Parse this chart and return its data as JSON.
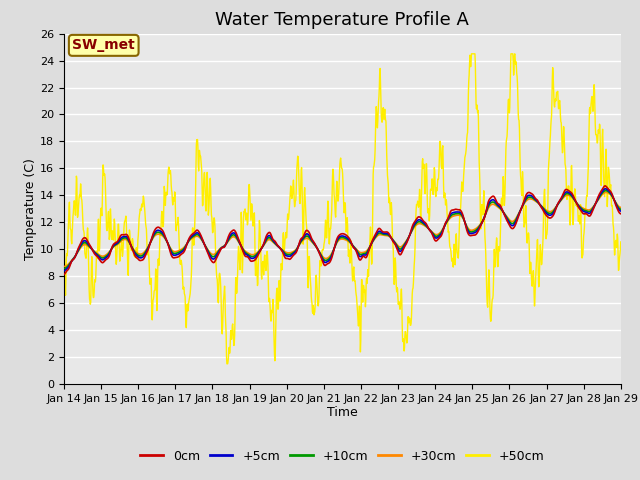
{
  "title": "Water Temperature Profile A",
  "xlabel": "Time",
  "ylabel": "Temperature (C)",
  "ylim": [
    0,
    26
  ],
  "yticks": [
    0,
    2,
    4,
    6,
    8,
    10,
    12,
    14,
    16,
    18,
    20,
    22,
    24,
    26
  ],
  "xtick_labels": [
    "Jan 14",
    "Jan 15",
    "Jan 16",
    "Jan 17",
    "Jan 18",
    "Jan 19",
    "Jan 20",
    "Jan 21",
    "Jan 22",
    "Jan 23",
    "Jan 24",
    "Jan 25",
    "Jan 26",
    "Jan 27",
    "Jan 28",
    "Jan 29"
  ],
  "series_colors": [
    "#cc0000",
    "#0000cc",
    "#009900",
    "#ff8800",
    "#ffee00"
  ],
  "series_labels": [
    "0cm",
    "+5cm",
    "+10cm",
    "+30cm",
    "+50cm"
  ],
  "annotation_text": "SW_met",
  "annotation_bg": "#ffffaa",
  "annotation_border": "#886600",
  "annotation_text_color": "#880000",
  "bg_color": "#e8e8e8",
  "grid_color": "#ffffff",
  "title_fontsize": 13,
  "axis_fontsize": 9,
  "tick_fontsize": 8,
  "legend_fontsize": 9
}
